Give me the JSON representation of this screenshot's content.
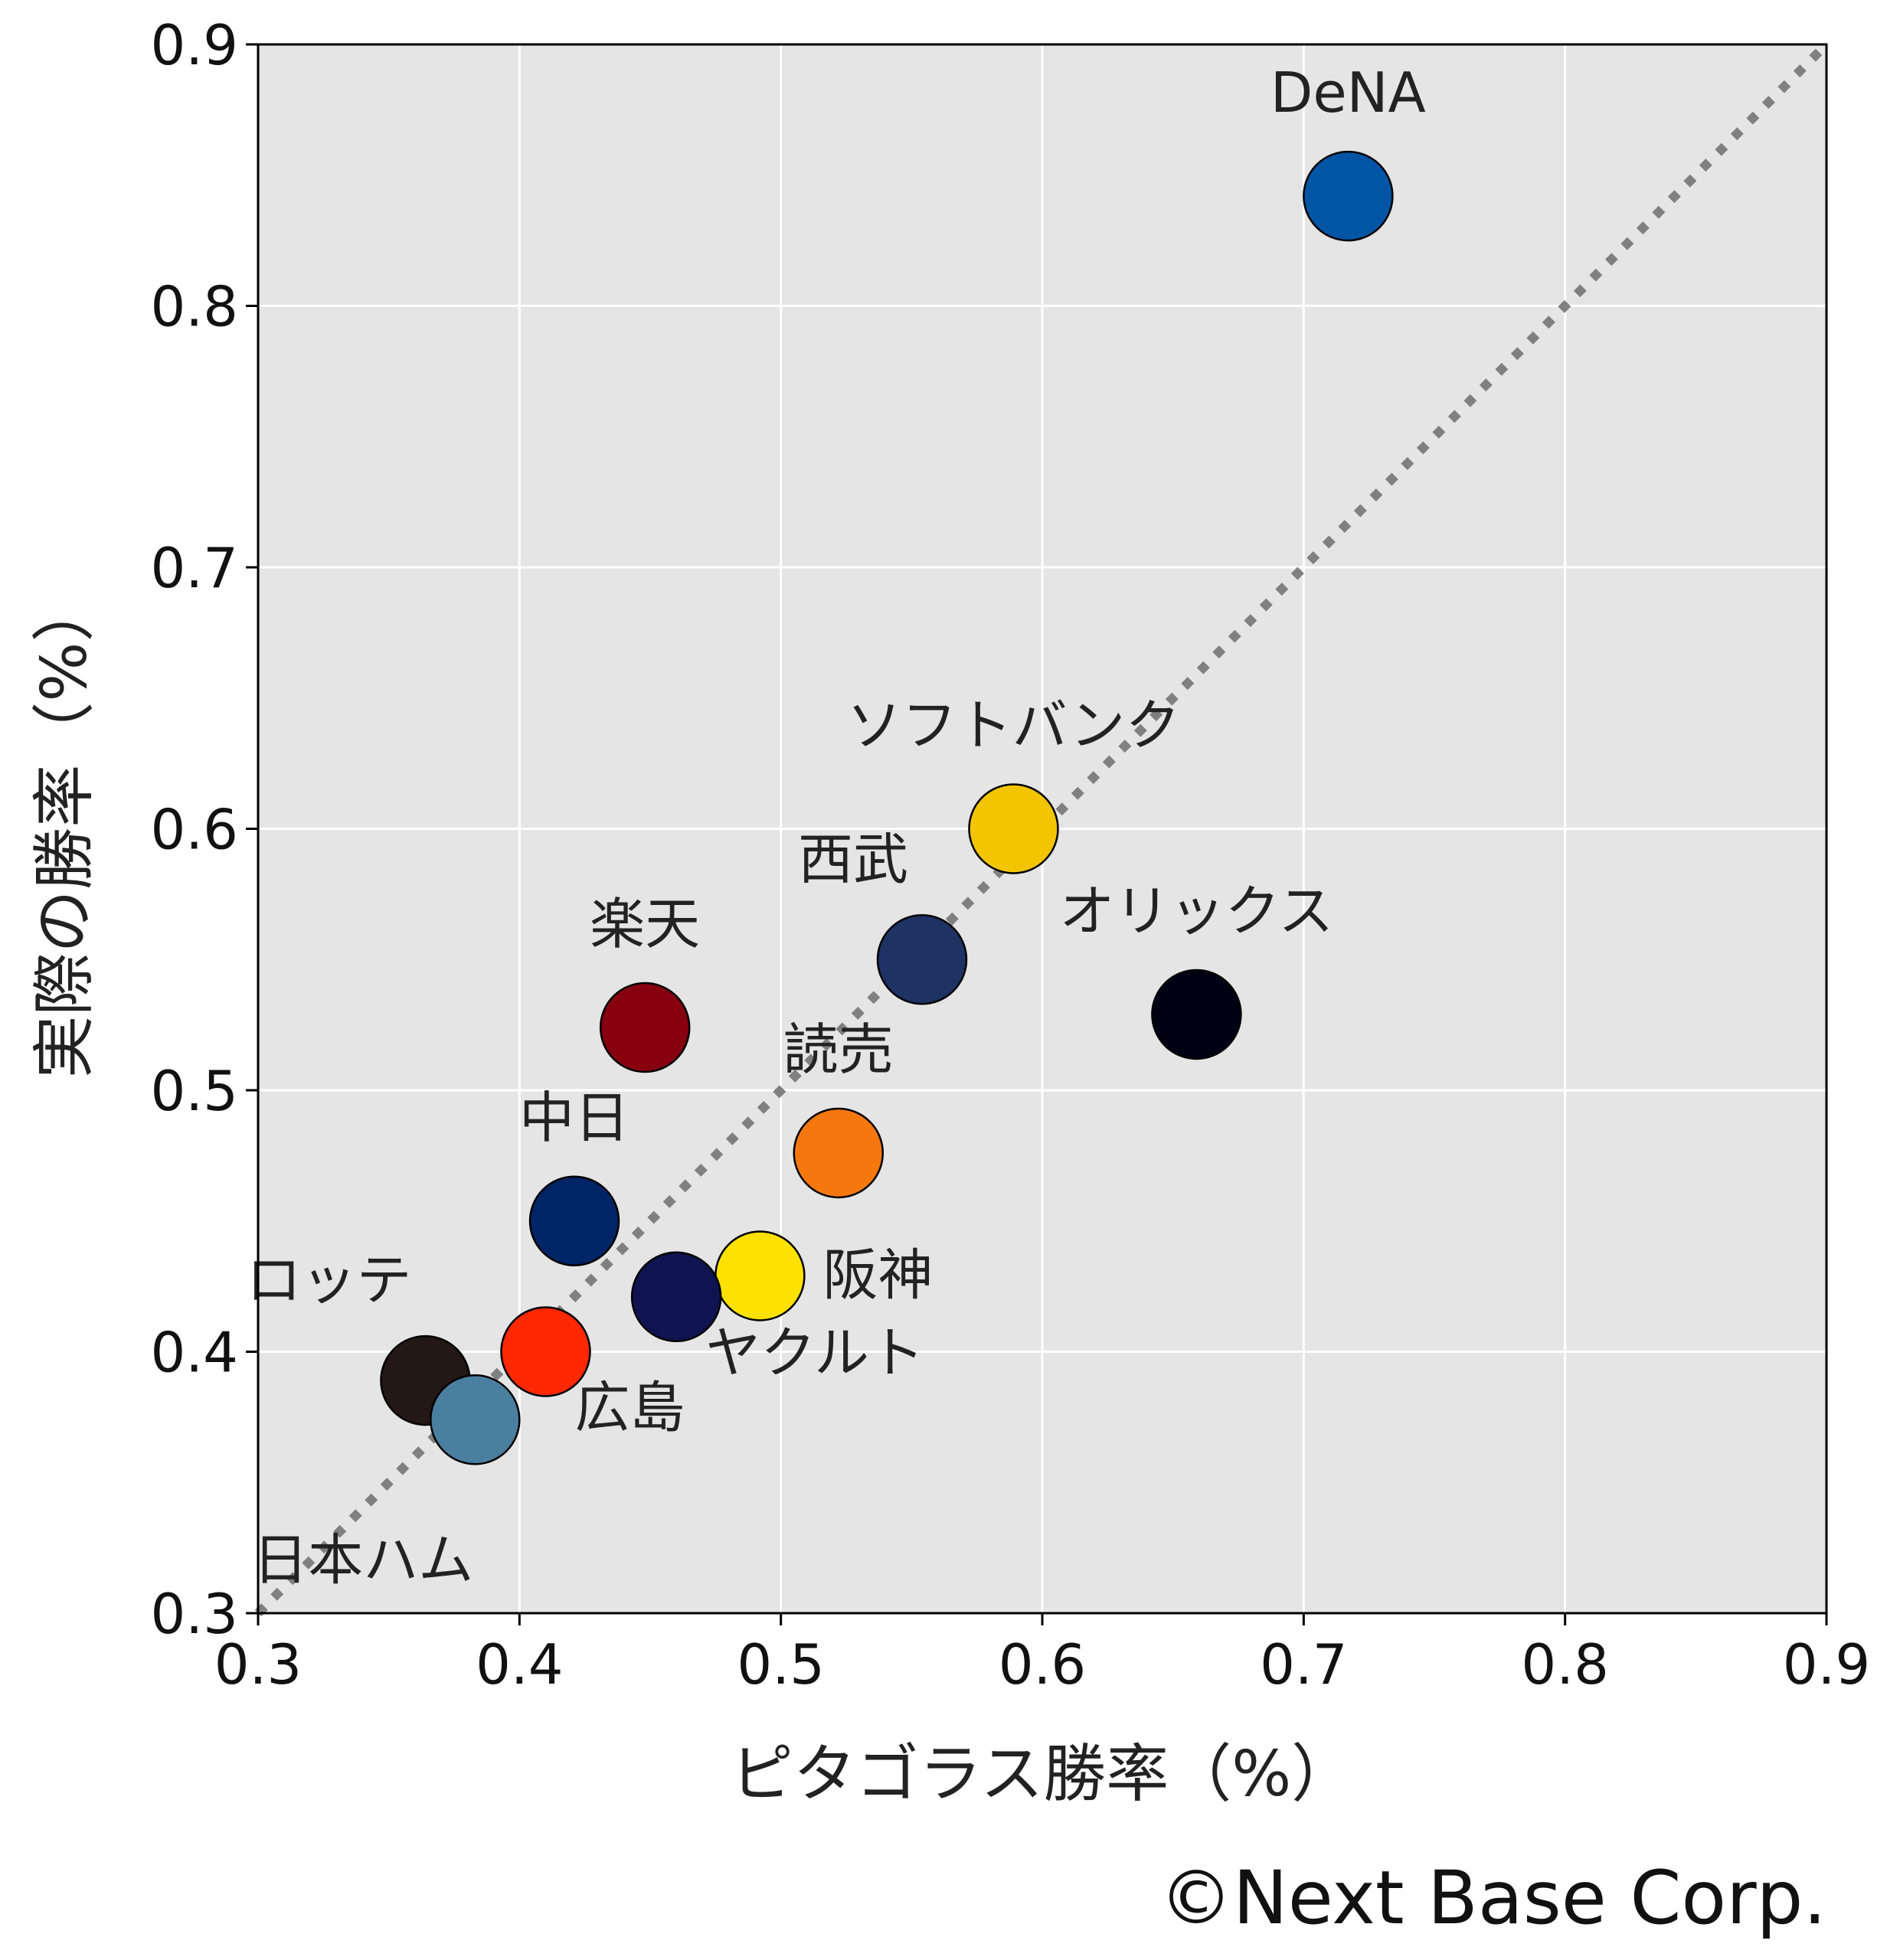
{
  "chart_data": {
    "type": "scatter",
    "xlabel": "ピタゴラス勝率（%）",
    "ylabel": "実際の勝率（%）",
    "xlim": [
      0.3,
      0.9
    ],
    "ylim": [
      0.3,
      0.9
    ],
    "xticks": [
      "0.3",
      "0.4",
      "0.5",
      "0.6",
      "0.7",
      "0.8",
      "0.9"
    ],
    "yticks": [
      "0.3",
      "0.4",
      "0.5",
      "0.6",
      "0.7",
      "0.8",
      "0.9"
    ],
    "grid": true,
    "background": "#e5e5e5",
    "reference_line": {
      "style": "dotted",
      "color": "#808080",
      "x": [
        0.3,
        0.9
      ],
      "y": [
        0.3,
        0.9
      ]
    },
    "points": [
      {
        "label": "DeNA",
        "x": 0.717,
        "y": 0.842,
        "color": "#0055a5",
        "label_pos": "above"
      },
      {
        "label": "ソフトバンク",
        "x": 0.589,
        "y": 0.6,
        "color": "#f2c500",
        "label_pos": "above"
      },
      {
        "label": "西武",
        "x": 0.554,
        "y": 0.55,
        "color": "#1e3264",
        "label_pos": "above-left"
      },
      {
        "label": "オリックス",
        "x": 0.659,
        "y": 0.529,
        "color": "#000014",
        "label_pos": "above"
      },
      {
        "label": "楽天",
        "x": 0.448,
        "y": 0.524,
        "color": "#860010",
        "label_pos": "above"
      },
      {
        "label": "読売",
        "x": 0.522,
        "y": 0.476,
        "color": "#f5780f",
        "label_pos": "above"
      },
      {
        "label": "中日",
        "x": 0.421,
        "y": 0.45,
        "color": "#002566",
        "label_pos": "above"
      },
      {
        "label": "阪神",
        "x": 0.492,
        "y": 0.429,
        "color": "#ffe100",
        "label_pos": "right"
      },
      {
        "label": "ヤクルト",
        "x": 0.46,
        "y": 0.421,
        "color": "#0f1450",
        "label_pos": "below-right"
      },
      {
        "label": "広島",
        "x": 0.41,
        "y": 0.4,
        "color": "#ff2800",
        "label_pos": "below-right"
      },
      {
        "label": "ロッテ",
        "x": 0.364,
        "y": 0.389,
        "color": "#231815",
        "label_pos": "above-left"
      },
      {
        "label": "日本ハム",
        "x": 0.383,
        "y": 0.374,
        "color": "#4b7fa0",
        "label_pos": "below-left"
      }
    ]
  },
  "credit": "©Next Base Corp."
}
